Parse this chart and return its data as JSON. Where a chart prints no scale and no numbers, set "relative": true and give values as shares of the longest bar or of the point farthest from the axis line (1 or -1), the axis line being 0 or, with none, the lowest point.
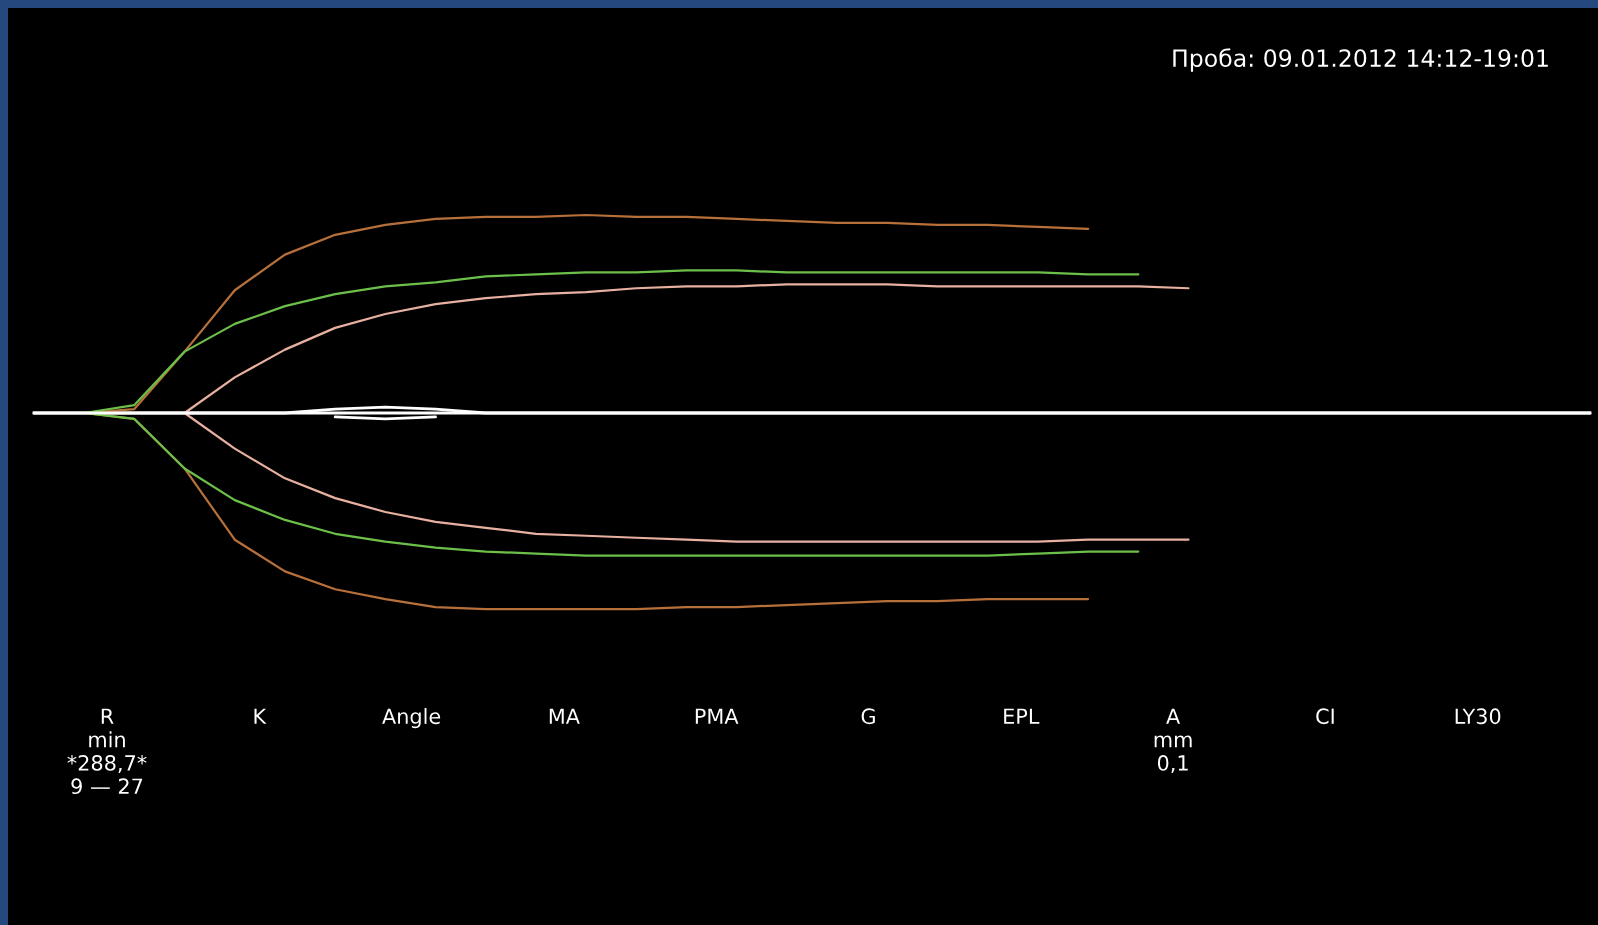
{
  "chart_data": {
    "type": "line",
    "relative": true,
    "title": "Проба: 09.01.2012 14:12-19:01",
    "categories": [
      null,
      null,
      null,
      null,
      null,
      null,
      null,
      null,
      null,
      null,
      null,
      null,
      null,
      null,
      null,
      null,
      null,
      null,
      null,
      null,
      null,
      null,
      null,
      null,
      null,
      null,
      null,
      null,
      null,
      null,
      null,
      null
    ],
    "series": [
      {
        "color": "#ffffff",
        "values": [
          0,
          0,
          0,
          0,
          0,
          0,
          0.02,
          0.03,
          0.02,
          0,
          0,
          0,
          0,
          0,
          0,
          0,
          0,
          0,
          0,
          0,
          0,
          0,
          0,
          0,
          0,
          0,
          0,
          0,
          0,
          0,
          0,
          0
        ]
      },
      {
        "color": "#ffffff",
        "values": [
          null,
          null,
          null,
          null,
          null,
          null,
          -0.02,
          -0.03,
          -0.02,
          null,
          null,
          null,
          null,
          null,
          null,
          null,
          null,
          null,
          null,
          null,
          null,
          null,
          null,
          null,
          null,
          null,
          null,
          null,
          null,
          null,
          null,
          null
        ]
      },
      {
        "color": "#b8703a",
        "values": [
          0,
          0,
          0.02,
          0.31,
          0.62,
          0.8,
          0.9,
          0.95,
          0.98,
          0.99,
          0.99,
          1,
          0.99,
          0.99,
          0.98,
          0.97,
          0.96,
          0.96,
          0.95,
          0.95,
          0.94,
          0.93,
          null,
          null,
          null,
          null,
          null,
          null,
          null,
          null,
          null,
          null
        ]
      },
      {
        "color": "#b8703a",
        "values": [
          0,
          0,
          -0.03,
          -0.28,
          -0.64,
          -0.8,
          -0.89,
          -0.94,
          -0.98,
          -0.99,
          -0.99,
          -0.99,
          -0.99,
          -0.98,
          -0.98,
          -0.97,
          -0.96,
          -0.95,
          -0.95,
          -0.94,
          -0.94,
          -0.94,
          null,
          null,
          null,
          null,
          null,
          null,
          null,
          null,
          null,
          null
        ]
      },
      {
        "color": "#6cc04a",
        "values": [
          0,
          0,
          0.04,
          0.31,
          0.45,
          0.54,
          0.6,
          0.64,
          0.66,
          0.69,
          0.7,
          0.71,
          0.71,
          0.72,
          0.72,
          0.71,
          0.71,
          0.71,
          0.71,
          0.71,
          0.71,
          0.7,
          0.7,
          null,
          null,
          null,
          null,
          null,
          null,
          null,
          null,
          null
        ]
      },
      {
        "color": "#6cc04a",
        "values": [
          0,
          0,
          -0.03,
          -0.28,
          -0.44,
          -0.54,
          -0.61,
          -0.65,
          -0.68,
          -0.7,
          -0.71,
          -0.72,
          -0.72,
          -0.72,
          -0.72,
          -0.72,
          -0.72,
          -0.72,
          -0.72,
          -0.72,
          -0.71,
          -0.7,
          -0.7,
          null,
          null,
          null,
          null,
          null,
          null,
          null,
          null,
          null
        ]
      },
      {
        "color": "#e8b0a0",
        "values": [
          0,
          0,
          0,
          0,
          0.18,
          0.32,
          0.43,
          0.5,
          0.55,
          0.58,
          0.6,
          0.61,
          0.63,
          0.64,
          0.64,
          0.65,
          0.65,
          0.65,
          0.64,
          0.64,
          0.64,
          0.64,
          0.64,
          0.63,
          null,
          null,
          null,
          null,
          null,
          null,
          null,
          null
        ]
      },
      {
        "color": "#e8b0a0",
        "values": [
          0,
          0,
          0,
          0,
          -0.18,
          -0.33,
          -0.43,
          -0.5,
          -0.55,
          -0.58,
          -0.61,
          -0.62,
          -0.63,
          -0.64,
          -0.65,
          -0.65,
          -0.65,
          -0.65,
          -0.65,
          -0.65,
          -0.65,
          -0.64,
          -0.64,
          -0.64,
          null,
          null,
          null,
          null,
          null,
          null,
          null,
          null
        ]
      }
    ],
    "annotations": [
      "R\nmin\n*288,7*\n9 — 27",
      "K",
      "Angle",
      "MA",
      "PMA",
      "G",
      "EPL",
      "A\nmm\n0,1",
      "CI",
      "LY30"
    ]
  }
}
